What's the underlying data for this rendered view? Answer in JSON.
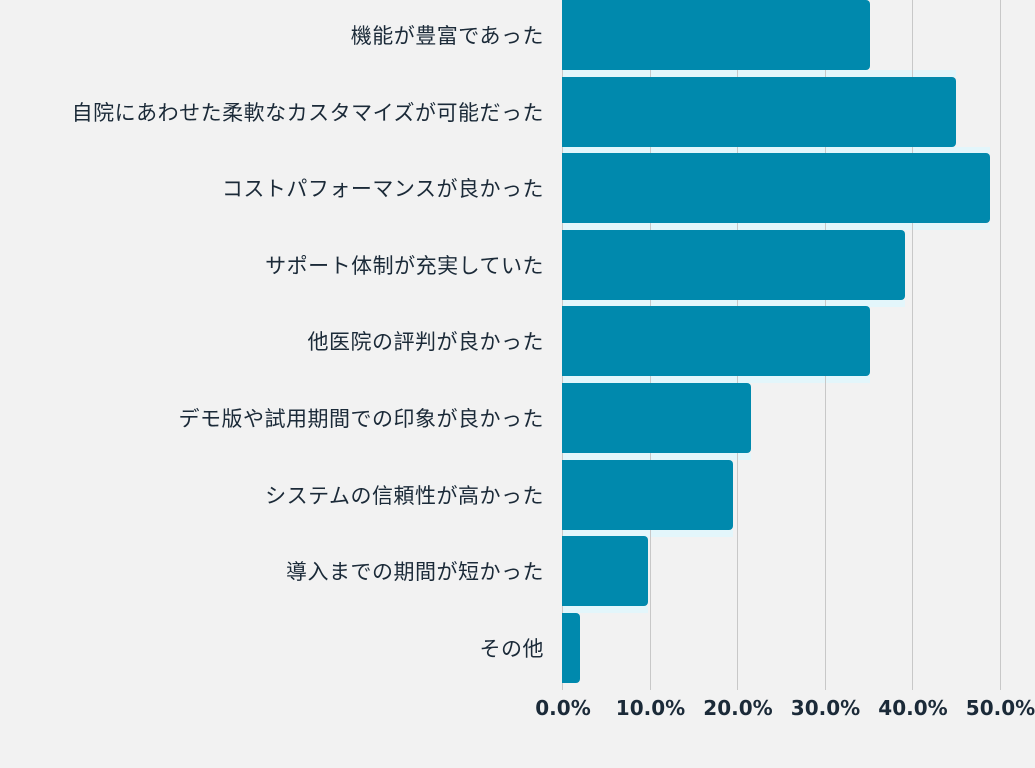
{
  "chart_data": {
    "type": "bar",
    "orientation": "horizontal",
    "title": "",
    "xlabel": "",
    "ylabel": "",
    "categories": [
      "機能が豊富であった",
      "自院にあわせた柔軟なカスタマイズが可能だった",
      "コストパフォーマンスが良かった",
      "サポート体制が充実していた",
      "他医院の評判が良かった",
      "デモ版や試用期間での印象が良かった",
      "システムの信頼性が高かった",
      "導入までの期間が短かった",
      "その他"
    ],
    "values": [
      35.2,
      45.0,
      48.9,
      39.2,
      35.2,
      21.6,
      19.5,
      9.8,
      2.0
    ],
    "unit": "%",
    "xlim": [
      0,
      52.5
    ],
    "x_ticks": [
      "0.0%",
      "10.0%",
      "20.0%",
      "30.0%",
      "40.0%",
      "50.0%"
    ],
    "x_tick_values": [
      0,
      10,
      20,
      30,
      40,
      50
    ],
    "grid": true,
    "legend": "none",
    "bar_color": "#0089ad"
  },
  "colors": {
    "background": "#f2f2f2",
    "bar": "#0089ad",
    "gridline": "#c8c8c8",
    "text": "#1b2a38"
  }
}
